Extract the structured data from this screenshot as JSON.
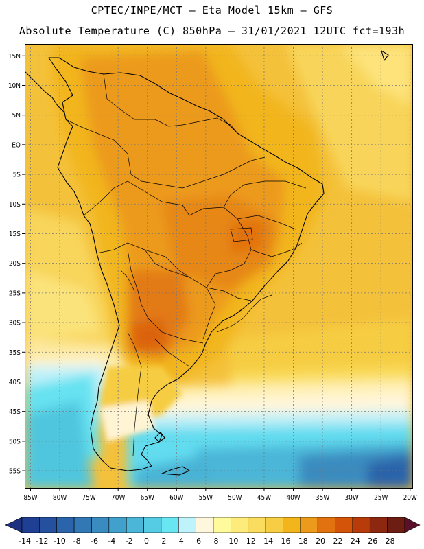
{
  "header": {
    "line1": "CPTEC/INPE/MCT –  Eta Model 15km – GFS",
    "line2": "Absolute Temperature (C) 850hPa – 31/01/2021 12UTC fct=193h"
  },
  "map": {
    "lat_labels": [
      "15N",
      "10N",
      "5N",
      "EQ",
      "5S",
      "10S",
      "15S",
      "20S",
      "25S",
      "30S",
      "35S",
      "40S",
      "45S",
      "50S",
      "55S"
    ],
    "lat_values": [
      15,
      10,
      5,
      0,
      -5,
      -10,
      -15,
      -20,
      -25,
      -30,
      -35,
      -40,
      -45,
      -50,
      -55
    ],
    "lon_labels": [
      "85W",
      "80W",
      "75W",
      "70W",
      "65W",
      "60W",
      "55W",
      "50W",
      "45W",
      "40W",
      "35W",
      "30W",
      "25W",
      "20W"
    ],
    "lon_values": [
      -85,
      -80,
      -75,
      -70,
      -65,
      -60,
      -55,
      -50,
      -45,
      -40,
      -35,
      -30,
      -25,
      -20
    ],
    "extent": {
      "lon_min": -86,
      "lon_max": -19.5,
      "lat_min": -58,
      "lat_max": 17
    },
    "grid": true
  },
  "colorbar": {
    "labels": [
      "-14",
      "-12",
      "-10",
      "-8",
      "-6",
      "-4",
      "-2",
      "0",
      "2",
      "4",
      "6",
      "8",
      "10",
      "12",
      "14",
      "16",
      "18",
      "20",
      "22",
      "24",
      "26",
      "28"
    ],
    "colors": [
      "#1e3f94",
      "#24509e",
      "#2b64aa",
      "#3178b5",
      "#3a8bbf",
      "#41a0cc",
      "#4bb6d8",
      "#55cce4",
      "#68e6f2",
      "#bff3fb",
      "#fff6de",
      "#fffb9d",
      "#fdeb7b",
      "#fadd5f",
      "#f6cd43",
      "#f2b51b",
      "#ec9a1b",
      "#e2720f",
      "#d4540a",
      "#b83c0a",
      "#8c2810",
      "#6d1d12"
    ],
    "low_color": "#1c3280",
    "high_color": "#5a0f2a"
  }
}
